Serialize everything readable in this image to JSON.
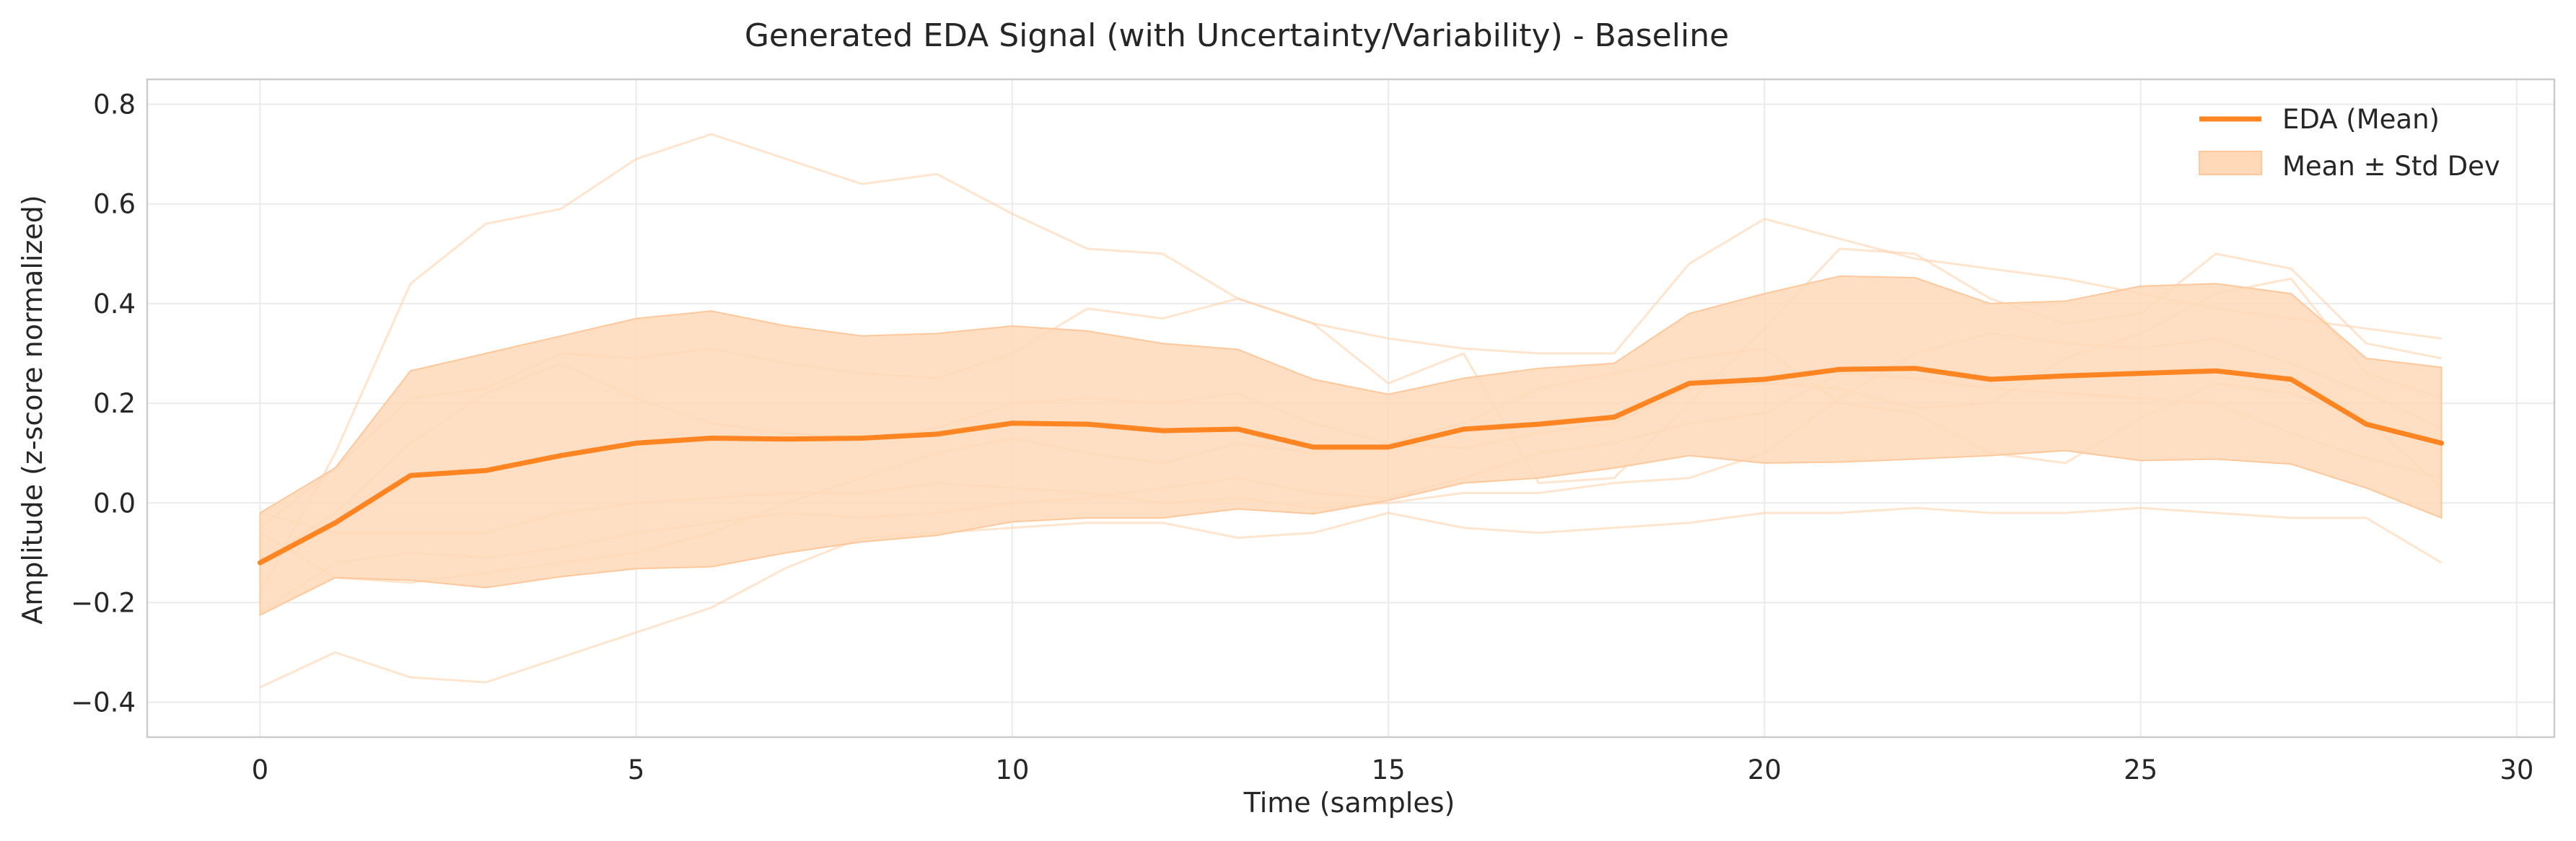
{
  "chart_data": {
    "type": "line",
    "title": "Generated EDA Signal (with Uncertainty/Variability) - Baseline",
    "xlabel": "Time (samples)",
    "ylabel": "Amplitude (z-score normalized)",
    "xlim": [
      -1.5,
      30.5
    ],
    "ylim": [
      -0.47,
      0.85
    ],
    "x_ticks": [
      0,
      5,
      10,
      15,
      20,
      25,
      30
    ],
    "y_ticks": [
      -0.4,
      -0.2,
      0.0,
      0.2,
      0.4,
      0.6,
      0.8
    ],
    "x_tick_labels": [
      "0",
      "5",
      "10",
      "15",
      "20",
      "25",
      "30"
    ],
    "y_tick_labels": [
      "−0.4",
      "−0.2",
      "0.0",
      "0.2",
      "0.4",
      "0.6",
      "0.8"
    ],
    "grid": true,
    "legend_position": "top-right",
    "x": [
      0,
      1,
      2,
      3,
      4,
      5,
      6,
      7,
      8,
      9,
      10,
      11,
      12,
      13,
      14,
      15,
      16,
      17,
      18,
      19,
      20,
      21,
      22,
      23,
      24,
      25,
      26,
      27,
      28,
      29
    ],
    "series": [
      {
        "name": "EDA (Mean)",
        "role": "mean",
        "color": "#ff8522",
        "values": [
          -0.12,
          -0.04,
          0.055,
          0.065,
          0.095,
          0.12,
          0.13,
          0.128,
          0.13,
          0.138,
          0.16,
          0.158,
          0.145,
          0.148,
          0.112,
          0.112,
          0.148,
          0.158,
          0.172,
          0.24,
          0.248,
          0.268,
          0.27,
          0.248,
          0.255,
          0.26,
          0.265,
          0.248,
          0.158,
          0.12
        ]
      },
      {
        "name": "Mean ± Std Dev",
        "role": "band",
        "color": "#ffd9b8",
        "upper": [
          -0.02,
          0.07,
          0.265,
          0.3,
          0.335,
          0.37,
          0.385,
          0.355,
          0.335,
          0.34,
          0.355,
          0.345,
          0.32,
          0.308,
          0.248,
          0.218,
          0.25,
          0.27,
          0.28,
          0.38,
          0.42,
          0.455,
          0.452,
          0.4,
          0.405,
          0.435,
          0.44,
          0.42,
          0.29,
          0.272
        ],
        "lower": [
          -0.225,
          -0.15,
          -0.155,
          -0.17,
          -0.148,
          -0.132,
          -0.128,
          -0.1,
          -0.078,
          -0.065,
          -0.038,
          -0.03,
          -0.03,
          -0.012,
          -0.022,
          0.005,
          0.04,
          0.05,
          0.07,
          0.095,
          0.08,
          0.082,
          0.088,
          0.095,
          0.105,
          0.085,
          0.088,
          0.078,
          0.03,
          -0.03
        ]
      }
    ],
    "samples": {
      "color": "#ffcfa6",
      "lines": [
        [
          -0.37,
          -0.3,
          -0.35,
          -0.36,
          -0.31,
          -0.26,
          -0.21,
          -0.13,
          -0.07,
          -0.06,
          -0.05,
          -0.04,
          -0.04,
          -0.07,
          -0.06,
          -0.02,
          -0.05,
          -0.06,
          -0.05,
          -0.04,
          -0.02,
          -0.02,
          -0.01,
          -0.02,
          -0.02,
          -0.01,
          -0.02,
          -0.03,
          -0.03,
          -0.12
        ],
        [
          -0.18,
          0.1,
          0.44,
          0.56,
          0.59,
          0.69,
          0.74,
          0.69,
          0.64,
          0.66,
          0.58,
          0.51,
          0.5,
          0.41,
          0.36,
          0.33,
          0.31,
          0.3,
          0.3,
          0.48,
          0.57,
          0.53,
          0.49,
          0.47,
          0.45,
          0.42,
          0.39,
          0.37,
          0.35,
          0.33
        ],
        [
          -0.05,
          0.07,
          0.21,
          0.23,
          0.3,
          0.29,
          0.31,
          0.28,
          0.26,
          0.25,
          0.3,
          0.39,
          0.37,
          0.41,
          0.36,
          0.24,
          0.3,
          0.04,
          0.05,
          0.2,
          0.35,
          0.51,
          0.5,
          0.41,
          0.36,
          0.38,
          0.5,
          0.47,
          0.32,
          0.29
        ],
        [
          -0.02,
          -0.06,
          -0.06,
          -0.06,
          -0.02,
          0.0,
          0.01,
          0.02,
          0.02,
          0.04,
          0.03,
          0.02,
          0.0,
          0.01,
          -0.01,
          0.0,
          0.02,
          0.02,
          0.04,
          0.05,
          0.1,
          0.21,
          0.3,
          0.34,
          0.32,
          0.31,
          0.33,
          0.28,
          0.22,
          0.15
        ],
        [
          -0.06,
          -0.15,
          -0.16,
          -0.14,
          -0.12,
          -0.1,
          -0.06,
          0.0,
          0.05,
          0.1,
          0.13,
          0.1,
          0.08,
          0.12,
          0.1,
          0.12,
          0.16,
          0.23,
          0.26,
          0.29,
          0.31,
          0.2,
          0.18,
          0.1,
          0.08,
          0.17,
          0.24,
          0.22,
          0.17,
          0.03
        ],
        [
          -0.12,
          -0.02,
          0.12,
          0.22,
          0.28,
          0.21,
          0.16,
          0.14,
          0.13,
          0.15,
          0.2,
          0.21,
          0.2,
          0.22,
          0.16,
          0.12,
          0.11,
          0.14,
          0.16,
          0.23,
          0.24,
          0.23,
          0.19,
          0.2,
          0.29,
          0.34,
          0.42,
          0.45,
          0.26,
          0.21
        ],
        [
          -0.22,
          -0.12,
          -0.1,
          -0.11,
          -0.09,
          -0.06,
          -0.04,
          -0.02,
          -0.03,
          -0.02,
          0.0,
          0.01,
          0.03,
          0.05,
          0.02,
          0.01,
          0.05,
          0.1,
          0.12,
          0.16,
          0.18,
          0.26,
          0.25,
          0.23,
          0.22,
          0.21,
          0.2,
          0.14,
          0.09,
          0.05
        ]
      ]
    },
    "legend": [
      {
        "label": "EDA (Mean)",
        "kind": "line",
        "color": "#ff8522"
      },
      {
        "label": "Mean ± Std Dev",
        "kind": "patch",
        "color": "#ffd9b8"
      }
    ]
  }
}
